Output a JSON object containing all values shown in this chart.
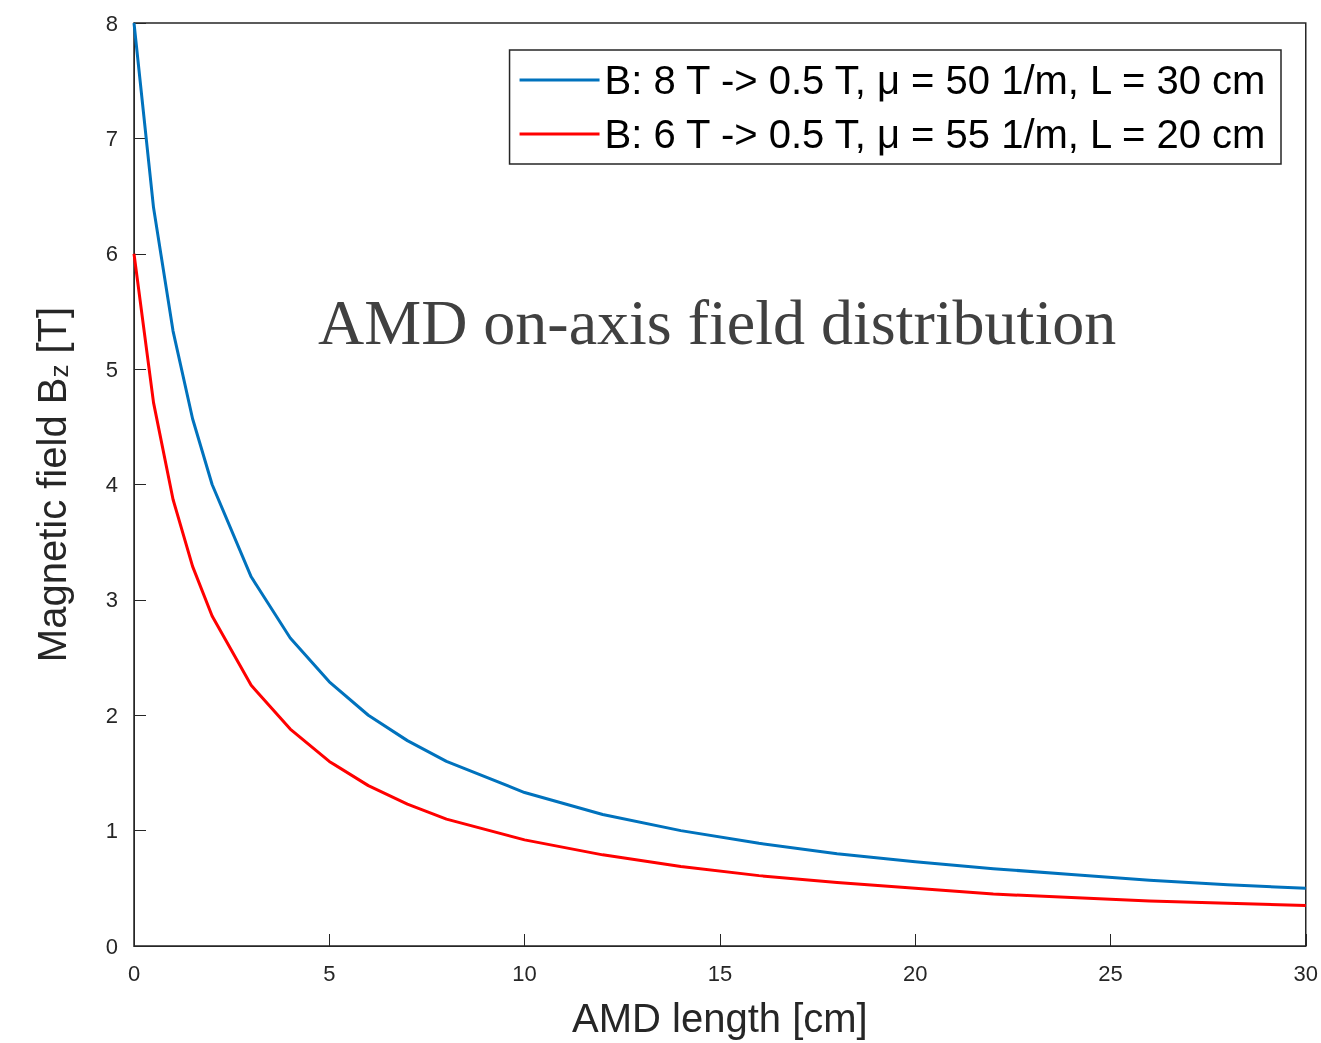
{
  "chart_data": {
    "type": "line",
    "xlabel": "AMD length [cm]",
    "ylabel": "Magnetic field B$_{z}$ [T]",
    "annotations": [
      "AMD on-axis field distribution"
    ],
    "x": [
      0,
      0.5,
      1,
      1.5,
      2,
      3,
      4,
      5,
      6,
      7,
      8,
      10,
      12,
      14,
      16,
      18,
      20,
      22,
      24,
      26,
      28,
      30
    ],
    "series": [
      {
        "name": "B: 8 T -> 0.5 T, μ = 50 1/m, L = 30 cm",
        "color": "#0072bd",
        "values": [
          8,
          6.4,
          5.33,
          4.57,
          4,
          3.2,
          2.67,
          2.29,
          2,
          1.78,
          1.6,
          1.33,
          1.14,
          1,
          0.89,
          0.8,
          0.73,
          0.67,
          0.62,
          0.57,
          0.53,
          0.5
        ]
      },
      {
        "name": "B: 6 T -> 0.5 T, μ = 55 1/m, L = 20 cm",
        "color": "#ff0000",
        "values": [
          6,
          4.71,
          3.87,
          3.29,
          2.86,
          2.26,
          1.88,
          1.6,
          1.39,
          1.23,
          1.1,
          0.92,
          0.79,
          0.69,
          0.61,
          0.55,
          0.5,
          0.45,
          0.42,
          0.39,
          0.37,
          0.35
        ]
      }
    ],
    "xlim": [
      0,
      30
    ],
    "xticks": [
      0,
      5,
      10,
      15,
      20,
      25,
      30
    ],
    "ylim": [
      0,
      8
    ],
    "yticks": [
      0,
      1,
      2,
      3,
      4,
      5,
      6,
      7,
      8
    ],
    "grid": false,
    "legend": "top right",
    "marker": "none",
    "line_style": "solid"
  }
}
